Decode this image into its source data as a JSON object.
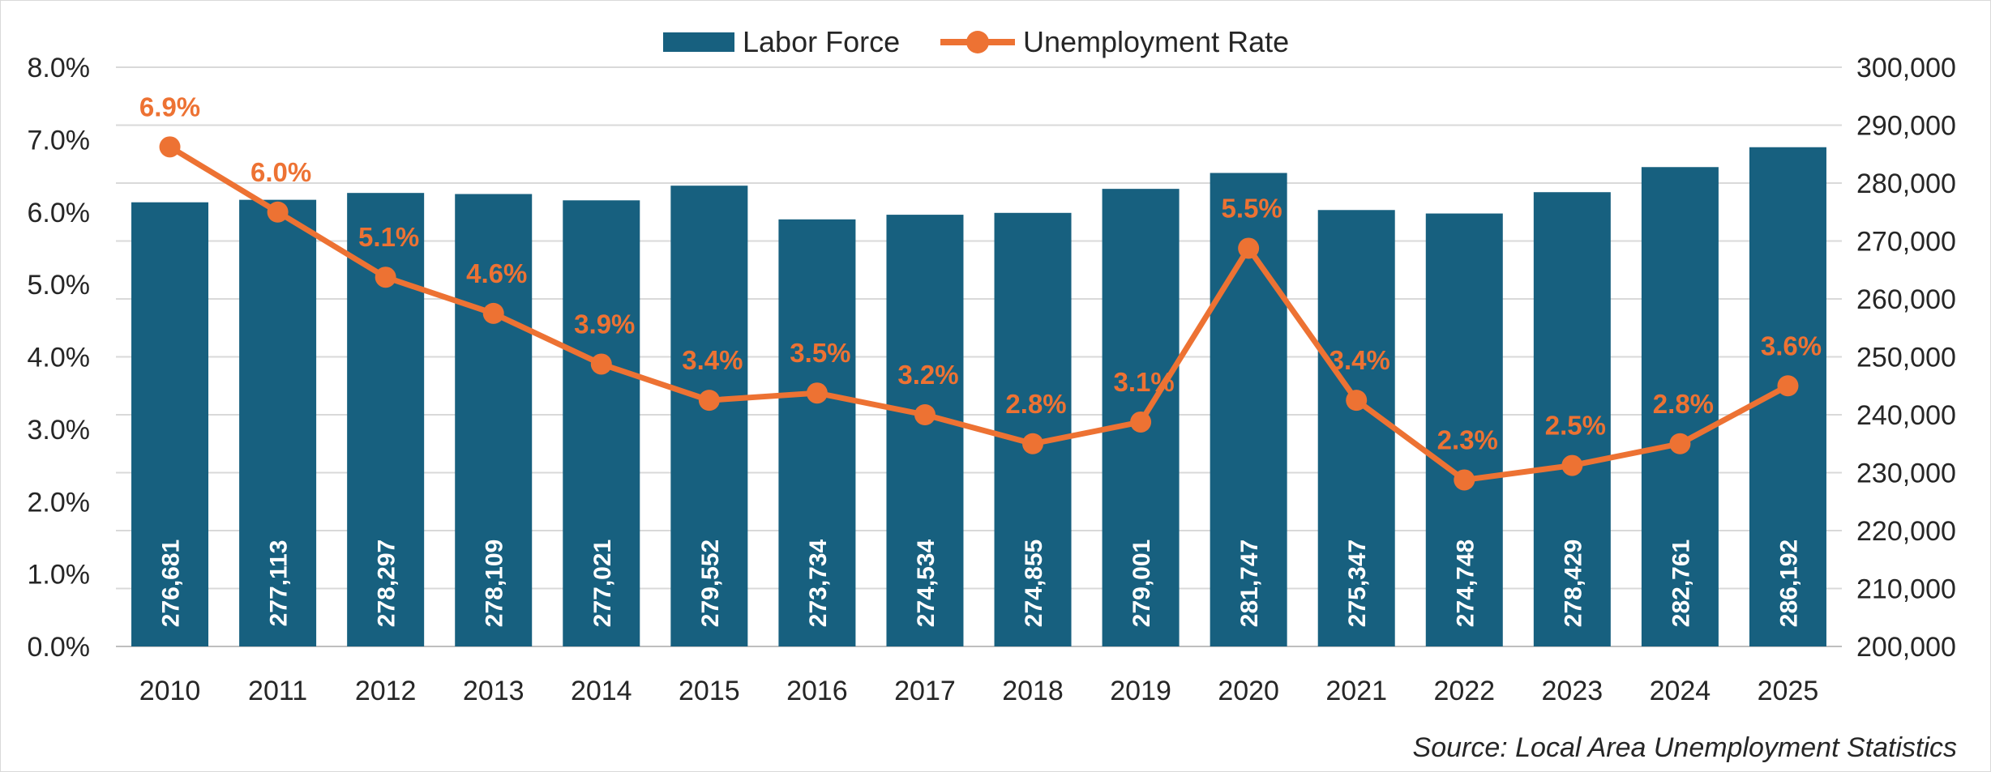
{
  "chart_data": {
    "type": "bar",
    "categories": [
      "2010",
      "2011",
      "2012",
      "2013",
      "2014",
      "2015",
      "2016",
      "2017",
      "2018",
      "2019",
      "2020",
      "2021",
      "2022",
      "2023",
      "2024",
      "2025"
    ],
    "series": [
      {
        "name": "Labor Force",
        "kind": "bar",
        "axis": "right",
        "color": "#17607F",
        "values": [
          276681,
          277113,
          278297,
          278109,
          277021,
          279552,
          273734,
          274534,
          274855,
          279001,
          281747,
          275347,
          274748,
          278429,
          282761,
          286192
        ],
        "labels": [
          "276,681",
          "277,113",
          "278,297",
          "278,109",
          "277,021",
          "279,552",
          "273,734",
          "274,534",
          "274,855",
          "279,001",
          "281,747",
          "275,347",
          "274,748",
          "278,429",
          "282,761",
          "286,192"
        ]
      },
      {
        "name": "Unemployment Rate",
        "kind": "line",
        "axis": "left",
        "color": "#ED7233",
        "values": [
          6.9,
          6.0,
          5.1,
          4.6,
          3.9,
          3.4,
          3.5,
          3.2,
          2.8,
          3.1,
          5.5,
          3.4,
          2.3,
          2.5,
          2.8,
          3.6
        ],
        "labels": [
          "6.9%",
          "6.0%",
          "5.1%",
          "4.6%",
          "3.9%",
          "3.4%",
          "3.5%",
          "3.2%",
          "2.8%",
          "3.1%",
          "5.5%",
          "3.4%",
          "2.3%",
          "2.5%",
          "2.8%",
          "3.6%"
        ]
      }
    ],
    "y_left": {
      "min": 0,
      "max": 8,
      "ticks": [
        "0.0%",
        "1.0%",
        "2.0%",
        "3.0%",
        "4.0%",
        "5.0%",
        "6.0%",
        "7.0%",
        "8.0%"
      ]
    },
    "y_right": {
      "min": 200000,
      "max": 300000,
      "ticks": [
        "200,000",
        "210,000",
        "220,000",
        "230,000",
        "240,000",
        "250,000",
        "260,000",
        "270,000",
        "280,000",
        "290,000",
        "300,000"
      ]
    },
    "grid": true,
    "legend": "top-center",
    "source": "Source: Local Area Unemployment Statistics"
  }
}
